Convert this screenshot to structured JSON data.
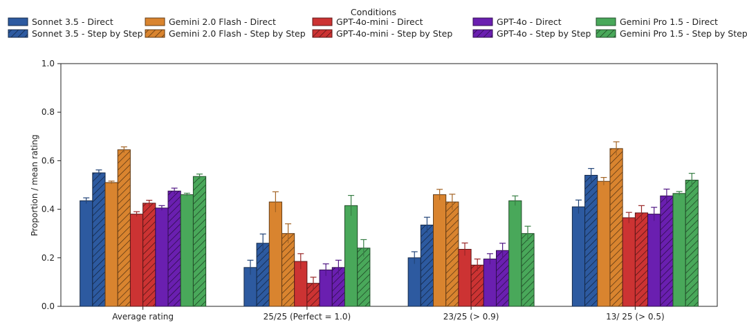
{
  "chart_data": {
    "type": "bar",
    "title": "",
    "xlabel": "",
    "ylabel": "Proportion / mean rating",
    "ylim": [
      0,
      1.0
    ],
    "yticks": [
      0.0,
      0.2,
      0.4,
      0.6,
      0.8,
      1.0
    ],
    "ytick_labels": [
      "0.0",
      "0.2",
      "0.4",
      "0.6",
      "0.8",
      "1.0"
    ],
    "grid": false,
    "legend_title": "Conditions",
    "legend_placement": "top",
    "categories": [
      "Average rating",
      "25/25 (Perfect = 1.0)",
      "23/25 (> 0.9)",
      "13/ 25 (> 0.5)"
    ],
    "series": [
      {
        "name": "Sonnet 3.5 - Direct",
        "color": "#2d5aa0",
        "hatch": false,
        "values": [
          0.435,
          0.16,
          0.2,
          0.41
        ],
        "errors": [
          0.012,
          0.03,
          0.025,
          0.028
        ]
      },
      {
        "name": "Sonnet 3.5 - Step by Step",
        "color": "#2d5aa0",
        "hatch": true,
        "values": [
          0.55,
          0.26,
          0.335,
          0.54
        ],
        "errors": [
          0.012,
          0.038,
          0.032,
          0.028
        ]
      },
      {
        "name": "Gemini 2.0 Flash - Direct",
        "color": "#d9842f",
        "hatch": false,
        "values": [
          0.51,
          0.43,
          0.46,
          0.515
        ],
        "errors": [
          0.006,
          0.042,
          0.022,
          0.016
        ]
      },
      {
        "name": "Gemini 2.0 Flash - Step by Step",
        "color": "#d9842f",
        "hatch": true,
        "values": [
          0.645,
          0.3,
          0.43,
          0.65
        ],
        "errors": [
          0.012,
          0.04,
          0.032,
          0.028
        ]
      },
      {
        "name": "GPT-4o-mini - Direct",
        "color": "#cc3333",
        "hatch": false,
        "values": [
          0.38,
          0.185,
          0.235,
          0.365
        ],
        "errors": [
          0.01,
          0.032,
          0.026,
          0.022
        ]
      },
      {
        "name": "GPT-4o-mini - Step by Step",
        "color": "#cc3333",
        "hatch": true,
        "values": [
          0.425,
          0.095,
          0.17,
          0.385
        ],
        "errors": [
          0.012,
          0.025,
          0.025,
          0.03
        ]
      },
      {
        "name": "GPT-4o - Direct",
        "color": "#6a1fb0",
        "hatch": false,
        "values": [
          0.405,
          0.15,
          0.195,
          0.38
        ],
        "errors": [
          0.01,
          0.025,
          0.022,
          0.028
        ]
      },
      {
        "name": "GPT-4o - Step by Step",
        "color": "#6a1fb0",
        "hatch": true,
        "values": [
          0.475,
          0.16,
          0.23,
          0.455
        ],
        "errors": [
          0.012,
          0.03,
          0.03,
          0.028
        ]
      },
      {
        "name": "Gemini Pro 1.5 - Direct",
        "color": "#49a85a",
        "hatch": false,
        "values": [
          0.46,
          0.415,
          0.435,
          0.465
        ],
        "errors": [
          0.006,
          0.042,
          0.02,
          0.008
        ]
      },
      {
        "name": "Gemini Pro 1.5 - Step by Step",
        "color": "#49a85a",
        "hatch": true,
        "values": [
          0.535,
          0.24,
          0.3,
          0.52
        ],
        "errors": [
          0.01,
          0.035,
          0.03,
          0.028
        ]
      }
    ]
  }
}
